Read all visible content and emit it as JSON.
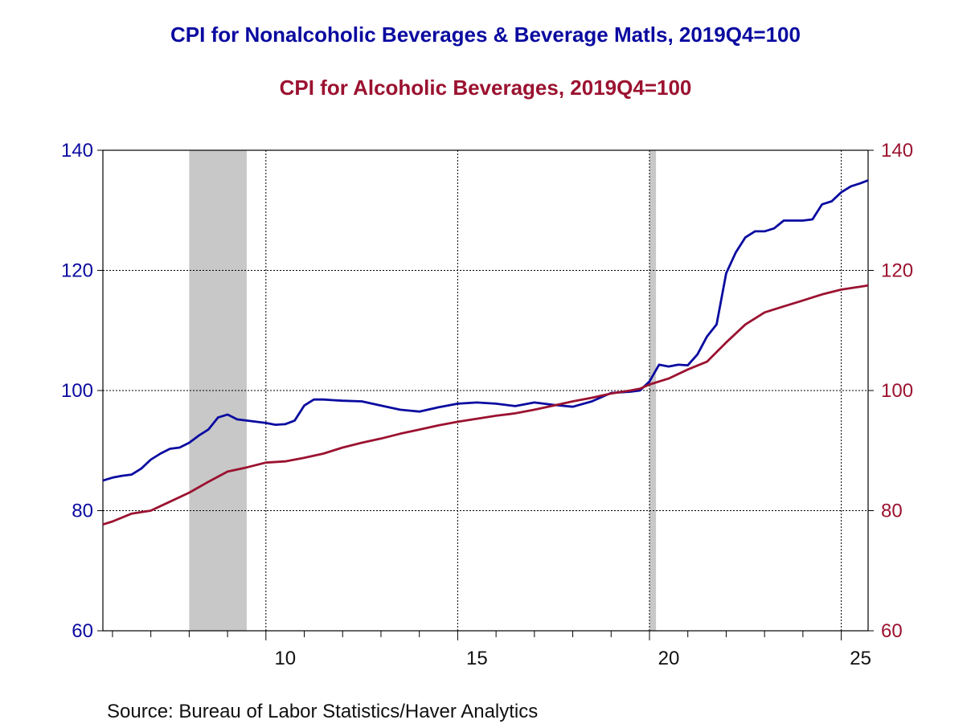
{
  "chart_data": {
    "type": "line",
    "title": "CPI for Nonalcoholic Beverages & Beverage Matls, 2019Q4=100",
    "subtitle": "CPI for Alcoholic Beverages, 2019Q4=100",
    "source": "Source:  Bureau of Labor Statistics/Haver Analytics",
    "x_tick_labels": [
      "10",
      "15",
      "20",
      "25"
    ],
    "x_ticks": [
      2010,
      2015,
      2020,
      2025
    ],
    "xlim": [
      2005.75,
      2025.7
    ],
    "y_left": {
      "ticks": [
        60,
        80,
        100,
        120,
        140
      ],
      "ylim": [
        60,
        140
      ],
      "color": "#0a0aa0"
    },
    "y_right": {
      "ticks": [
        60,
        80,
        100,
        120,
        140
      ],
      "ylim": [
        60,
        140
      ],
      "color": "#9b1230"
    },
    "grid": true,
    "recessions": [
      [
        2008.0,
        2009.5
      ],
      [
        2020.0,
        2020.17
      ]
    ],
    "series": [
      {
        "name": "CPI for Nonalcoholic Beverages & Beverage Matls, 2019Q4=100",
        "axis": "left",
        "color": "#0a0aa0",
        "x": [
          2005.75,
          2006.0,
          2006.25,
          2006.5,
          2006.75,
          2007.0,
          2007.25,
          2007.5,
          2007.75,
          2008.0,
          2008.25,
          2008.5,
          2008.75,
          2009.0,
          2009.25,
          2009.5,
          2009.75,
          2010.0,
          2010.25,
          2010.5,
          2010.75,
          2011.0,
          2011.25,
          2011.5,
          2011.75,
          2012.0,
          2012.5,
          2013.0,
          2013.5,
          2014.0,
          2014.5,
          2015.0,
          2015.5,
          2016.0,
          2016.5,
          2017.0,
          2017.5,
          2018.0,
          2018.5,
          2019.0,
          2019.5,
          2019.75,
          2020.0,
          2020.25,
          2020.5,
          2020.75,
          2021.0,
          2021.25,
          2021.5,
          2021.75,
          2022.0,
          2022.25,
          2022.5,
          2022.75,
          2023.0,
          2023.25,
          2023.5,
          2023.75,
          2024.0,
          2024.25,
          2024.5,
          2024.75,
          2025.0,
          2025.25,
          2025.5,
          2025.7
        ],
        "values": [
          85.0,
          85.5,
          85.8,
          86.0,
          87.0,
          88.5,
          89.5,
          90.3,
          90.5,
          91.3,
          92.5,
          93.5,
          95.5,
          96.0,
          95.2,
          95.0,
          94.8,
          94.6,
          94.3,
          94.4,
          95.0,
          97.5,
          98.5,
          98.5,
          98.4,
          98.3,
          98.2,
          97.5,
          96.8,
          96.5,
          97.2,
          97.8,
          98.0,
          97.8,
          97.4,
          98.0,
          97.6,
          97.3,
          98.2,
          99.6,
          99.8,
          100.0,
          101.5,
          104.3,
          104.0,
          104.3,
          104.2,
          106.0,
          109.0,
          111.0,
          119.5,
          123.0,
          125.5,
          126.5,
          126.5,
          127.0,
          128.3,
          128.3,
          128.3,
          128.5,
          131.0,
          131.5,
          133.0,
          134.0,
          134.5,
          135.0
        ]
      },
      {
        "name": "CPI for Alcoholic Beverages, 2019Q4=100",
        "axis": "right",
        "color": "#9b1230",
        "x": [
          2005.75,
          2006.0,
          2006.5,
          2007.0,
          2007.5,
          2008.0,
          2008.5,
          2009.0,
          2009.5,
          2010.0,
          2010.5,
          2011.0,
          2011.5,
          2012.0,
          2012.5,
          2013.0,
          2013.5,
          2014.0,
          2014.5,
          2015.0,
          2015.5,
          2016.0,
          2016.5,
          2017.0,
          2017.5,
          2018.0,
          2018.5,
          2019.0,
          2019.5,
          2019.75,
          2020.0,
          2020.5,
          2021.0,
          2021.5,
          2022.0,
          2022.5,
          2023.0,
          2023.5,
          2024.0,
          2024.5,
          2025.0,
          2025.5,
          2025.7
        ],
        "values": [
          77.7,
          78.2,
          79.5,
          80.0,
          81.5,
          83.0,
          84.8,
          86.5,
          87.2,
          88.0,
          88.2,
          88.8,
          89.5,
          90.5,
          91.3,
          92.0,
          92.8,
          93.5,
          94.2,
          94.8,
          95.3,
          95.8,
          96.2,
          96.8,
          97.5,
          98.2,
          98.8,
          99.5,
          100.0,
          100.3,
          101.0,
          102.0,
          103.5,
          104.8,
          108.0,
          111.0,
          113.0,
          114.0,
          115.0,
          116.0,
          116.8,
          117.3,
          117.5
        ]
      }
    ]
  }
}
